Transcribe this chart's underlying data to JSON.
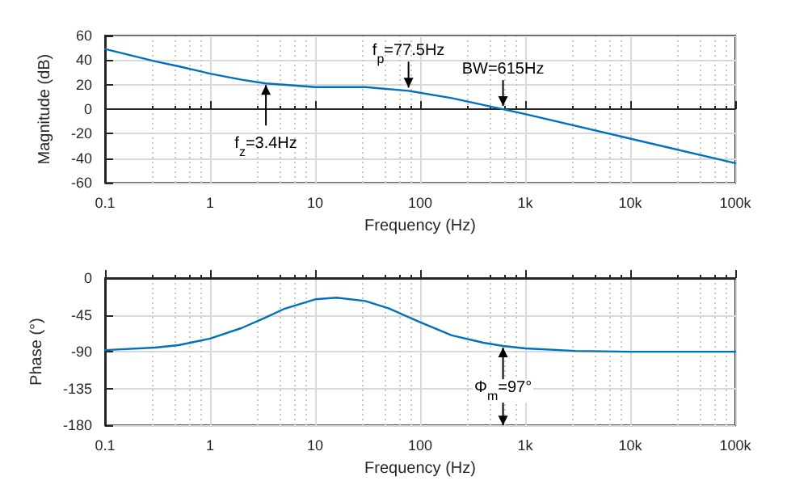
{
  "chart_data": [
    {
      "type": "line",
      "xlabel": "Frequency (Hz)",
      "ylabel": "Magnitude (dB)",
      "log": "x",
      "grid": true,
      "marker": "none",
      "line_style": "solid",
      "x": [
        0.1,
        0.3,
        0.5,
        1,
        2,
        3.4,
        5,
        10,
        30,
        77.5,
        200,
        615,
        1000,
        10000,
        100000
      ],
      "series": [
        {
          "color": "#0072bd",
          "values": [
            49,
            39,
            35,
            29,
            24,
            21,
            20,
            18,
            18,
            15,
            9,
            0,
            -4,
            -24,
            -44
          ]
        }
      ],
      "xlim": [
        0.1,
        100000
      ],
      "xticks": [
        0.1,
        1,
        10,
        100,
        {
          "value": 1000,
          "label": "1k"
        },
        {
          "value": 10000,
          "label": "10k"
        },
        {
          "value": 100000,
          "label": "100k"
        }
      ],
      "ylim": [
        -60,
        60
      ],
      "yticks": [
        -60,
        -40,
        -20,
        0,
        20,
        40,
        60
      ],
      "annotations": [
        {
          "text": "f$_{z}$=3.4Hz",
          "x": 3.4,
          "y": 21
        },
        {
          "text": "f$_{p}$=77.5Hz",
          "x": 77.5,
          "y": 15
        },
        {
          "text": "BW=615Hz",
          "x": 615,
          "y": 0
        }
      ]
    },
    {
      "type": "line",
      "xlabel": "Frequency (Hz)",
      "ylabel": "Phase (°)",
      "log": "x",
      "grid": true,
      "marker": "none",
      "line_style": "solid",
      "x": [
        0.1,
        0.3,
        0.5,
        1,
        2,
        3.4,
        5,
        10,
        16,
        30,
        50,
        100,
        200,
        400,
        615,
        1000,
        3000,
        10000,
        100000
      ],
      "series": [
        {
          "color": "#0072bd",
          "values": [
            -88,
            -85,
            -82,
            -74,
            -61,
            -48,
            -38,
            -26,
            -24,
            -28,
            -37,
            -54,
            -70,
            -79,
            -83,
            -86,
            -89,
            -90,
            -90
          ]
        }
      ],
      "xlim": [
        0.1,
        100000
      ],
      "xticks": [
        0.1,
        1,
        10,
        100,
        {
          "value": 1000,
          "label": "1k"
        },
        {
          "value": 10000,
          "label": "10k"
        },
        {
          "value": 100000,
          "label": "100k"
        }
      ],
      "ylim": [
        -180,
        0
      ],
      "yticks": [
        -180,
        -135,
        -90,
        -45,
        0
      ],
      "annotations": [
        {
          "text": "Φ$_{m}$=97°",
          "x": 615,
          "y": -83
        }
      ]
    }
  ]
}
